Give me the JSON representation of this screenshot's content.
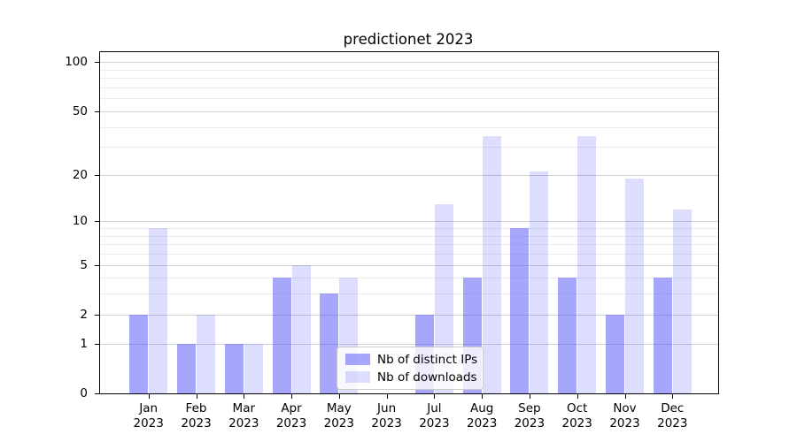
{
  "title": "predictionet 2023",
  "chart_data": {
    "type": "bar",
    "title": "predictionet 2023",
    "categories": [
      "Jan 2023",
      "Feb 2023",
      "Mar 2023",
      "Apr 2023",
      "May 2023",
      "Jun 2023",
      "Jul 2023",
      "Aug 2023",
      "Sep 2023",
      "Oct 2023",
      "Nov 2023",
      "Dec 2023"
    ],
    "series": [
      {
        "name": "Nb of distinct IPs",
        "values": [
          2,
          1,
          1,
          4,
          3,
          0,
          2,
          4,
          9,
          4,
          2,
          4
        ],
        "color": "rgba(85,85,245,0.52)"
      },
      {
        "name": "Nb of downloads",
        "values": [
          9,
          2,
          1,
          5,
          4,
          0,
          13,
          35,
          21,
          35,
          19,
          12
        ],
        "color": "rgba(85,85,245,0.20)"
      }
    ],
    "xlabel": "",
    "ylabel": "",
    "yscale": "log1p",
    "ylim": [
      0,
      115
    ],
    "yticks": [
      0,
      1,
      2,
      5,
      10,
      20,
      50,
      100
    ],
    "yticks_minor": [
      3,
      4,
      6,
      7,
      8,
      9,
      30,
      40,
      60,
      70,
      80,
      90
    ],
    "grid": true,
    "legend_position": "lower center"
  },
  "colors": {
    "major_grid": "#cfcfcf",
    "minor_grid": "#ececec",
    "axis": "#000000",
    "text": "#000000"
  }
}
